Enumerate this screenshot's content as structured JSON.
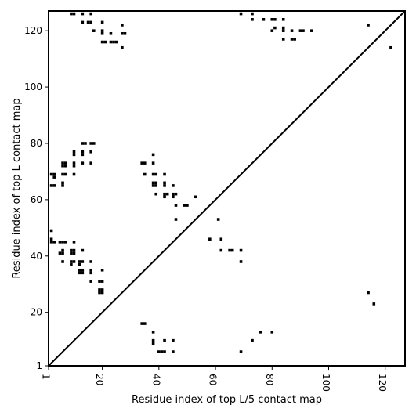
{
  "chart_data": {
    "type": "scatter",
    "title": "",
    "xlabel": "Residue index of top L/5 contact map",
    "ylabel": "Residue index of top L contact map",
    "xlim": [
      1,
      127
    ],
    "ylim": [
      1,
      127
    ],
    "x_ticks": [
      1,
      20,
      40,
      60,
      80,
      100,
      120
    ],
    "y_ticks": [
      1,
      20,
      40,
      60,
      80,
      100,
      120
    ],
    "grid": false,
    "diagonal": true,
    "marker": "square",
    "color": "#000000",
    "series": [
      {
        "name": "",
        "points": [
          [
            9,
            126
          ],
          [
            10,
            126
          ],
          [
            13,
            126
          ],
          [
            16,
            126
          ],
          [
            13,
            123
          ],
          [
            15,
            123
          ],
          [
            16,
            123
          ],
          [
            20,
            123
          ],
          [
            17,
            120
          ],
          [
            20,
            120
          ],
          [
            20,
            119
          ],
          [
            23,
            119
          ],
          [
            27,
            122
          ],
          [
            27,
            119
          ],
          [
            28,
            119
          ],
          [
            20,
            116
          ],
          [
            21,
            116
          ],
          [
            23,
            116
          ],
          [
            24,
            116
          ],
          [
            25,
            116
          ],
          [
            27,
            114
          ],
          [
            69,
            126
          ],
          [
            73,
            126
          ],
          [
            73,
            124
          ],
          [
            77,
            124
          ],
          [
            80,
            124
          ],
          [
            81,
            124
          ],
          [
            84,
            124
          ],
          [
            80,
            120
          ],
          [
            81,
            121
          ],
          [
            84,
            121
          ],
          [
            84,
            120
          ],
          [
            84,
            117
          ],
          [
            87,
            120
          ],
          [
            87,
            117
          ],
          [
            88,
            117
          ],
          [
            90,
            120
          ],
          [
            91,
            120
          ],
          [
            94,
            120
          ],
          [
            114,
            122
          ],
          [
            122,
            114
          ],
          [
            13,
            80
          ],
          [
            14,
            80
          ],
          [
            16,
            80
          ],
          [
            17,
            80
          ],
          [
            10,
            77
          ],
          [
            10,
            76
          ],
          [
            13,
            77
          ],
          [
            13,
            76
          ],
          [
            16,
            77
          ],
          [
            6,
            73
          ],
          [
            7,
            73
          ],
          [
            6,
            72
          ],
          [
            7,
            72
          ],
          [
            10,
            73
          ],
          [
            10,
            72
          ],
          [
            13,
            73
          ],
          [
            16,
            73
          ],
          [
            2,
            69
          ],
          [
            3,
            69
          ],
          [
            3,
            68
          ],
          [
            6,
            69
          ],
          [
            7,
            69
          ],
          [
            10,
            69
          ],
          [
            2,
            65
          ],
          [
            3,
            65
          ],
          [
            6,
            66
          ],
          [
            6,
            65
          ],
          [
            34,
            73
          ],
          [
            35,
            73
          ],
          [
            38,
            73
          ],
          [
            38,
            76
          ],
          [
            35,
            69
          ],
          [
            38,
            69
          ],
          [
            39,
            69
          ],
          [
            42,
            69
          ],
          [
            38,
            66
          ],
          [
            39,
            66
          ],
          [
            38,
            65
          ],
          [
            39,
            65
          ],
          [
            42,
            66
          ],
          [
            42,
            65
          ],
          [
            45,
            65
          ],
          [
            39,
            62
          ],
          [
            42,
            62
          ],
          [
            42,
            61
          ],
          [
            43,
            62
          ],
          [
            45,
            62
          ],
          [
            45,
            61
          ],
          [
            46,
            62
          ],
          [
            46,
            58
          ],
          [
            49,
            58
          ],
          [
            50,
            58
          ],
          [
            53,
            61
          ],
          [
            46,
            53
          ],
          [
            2,
            49
          ],
          [
            2,
            46
          ],
          [
            2,
            45
          ],
          [
            3,
            45
          ],
          [
            5,
            45
          ],
          [
            6,
            45
          ],
          [
            7,
            45
          ],
          [
            10,
            45
          ],
          [
            5,
            41
          ],
          [
            6,
            41
          ],
          [
            6,
            42
          ],
          [
            9,
            42
          ],
          [
            9,
            41
          ],
          [
            10,
            41
          ],
          [
            10,
            42
          ],
          [
            13,
            42
          ],
          [
            6,
            38
          ],
          [
            9,
            38
          ],
          [
            10,
            38
          ],
          [
            9,
            37
          ],
          [
            12,
            38
          ],
          [
            12,
            37
          ],
          [
            13,
            38
          ],
          [
            12,
            35
          ],
          [
            12,
            34
          ],
          [
            13,
            34
          ],
          [
            13,
            35
          ],
          [
            16,
            38
          ],
          [
            16,
            35
          ],
          [
            16,
            34
          ],
          [
            20,
            35
          ],
          [
            16,
            31
          ],
          [
            19,
            31
          ],
          [
            20,
            31
          ],
          [
            19,
            28
          ],
          [
            20,
            28
          ],
          [
            19,
            27
          ],
          [
            20,
            27
          ],
          [
            58,
            46
          ],
          [
            62,
            46
          ],
          [
            61,
            53
          ],
          [
            62,
            42
          ],
          [
            65,
            42
          ],
          [
            66,
            42
          ],
          [
            69,
            42
          ],
          [
            69,
            38
          ],
          [
            34,
            16
          ],
          [
            35,
            16
          ],
          [
            38,
            13
          ],
          [
            38,
            10
          ],
          [
            38,
            9
          ],
          [
            42,
            10
          ],
          [
            45,
            10
          ],
          [
            40,
            6
          ],
          [
            41,
            6
          ],
          [
            42,
            6
          ],
          [
            45,
            6
          ],
          [
            69,
            6
          ],
          [
            73,
            10
          ],
          [
            76,
            13
          ],
          [
            80,
            13
          ],
          [
            114,
            27
          ],
          [
            116,
            23
          ]
        ]
      }
    ]
  }
}
